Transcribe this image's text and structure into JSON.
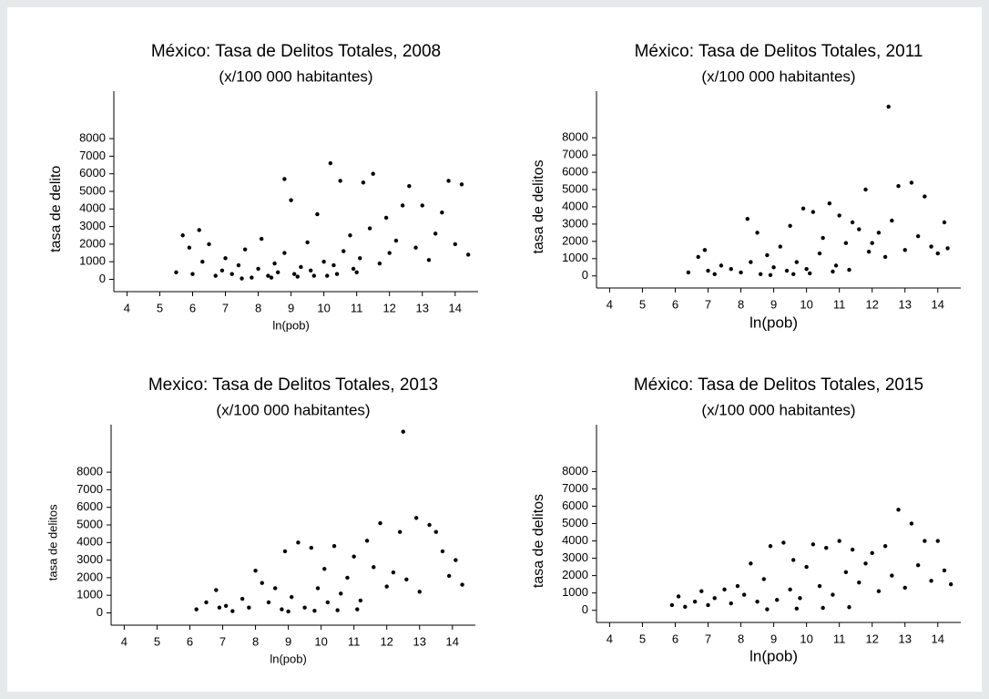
{
  "chart_data": [
    {
      "type": "scatter",
      "title": "México: Tasa de Delitos Totales, 2008",
      "subtitle": "(x/100 000 habitantes)",
      "x_label": "ln(pob)",
      "y_label": "tasa de delito",
      "color": "#000000",
      "xlim": [
        3.6,
        14.7
      ],
      "ylim": [
        -700,
        10700
      ],
      "xticks": [
        4,
        5,
        6,
        7,
        8,
        9,
        10,
        11,
        12,
        13,
        14
      ],
      "yticks": [
        0,
        1000,
        2000,
        3000,
        4000,
        5000,
        6000,
        7000,
        8000
      ],
      "x": [
        5.5,
        5.7,
        5.9,
        6.0,
        6.2,
        6.3,
        6.5,
        6.7,
        6.9,
        7.0,
        7.2,
        7.4,
        7.6,
        7.8,
        8.0,
        8.1,
        8.3,
        8.5,
        8.6,
        8.8,
        8.8,
        9.0,
        9.1,
        9.3,
        9.5,
        9.6,
        9.8,
        10.0,
        10.1,
        10.2,
        10.3,
        10.5,
        10.6,
        10.8,
        11.0,
        11.1,
        11.2,
        11.4,
        11.5,
        11.7,
        11.9,
        12.0,
        12.2,
        12.4,
        12.6,
        12.8,
        13.0,
        13.2,
        13.4,
        13.6,
        13.8,
        14.0,
        14.2,
        14.4,
        7.5,
        8.4,
        9.2,
        9.7,
        10.4,
        10.9
      ],
      "values": [
        400,
        2500,
        1800,
        300,
        2800,
        1000,
        2000,
        200,
        500,
        1200,
        300,
        800,
        1700,
        100,
        600,
        2300,
        200,
        900,
        400,
        5700,
        1500,
        4500,
        300,
        700,
        2100,
        500,
        3700,
        1000,
        200,
        6600,
        800,
        5600,
        1600,
        2500,
        400,
        1200,
        5500,
        2900,
        6000,
        900,
        3500,
        1500,
        2200,
        4200,
        5300,
        1800,
        4200,
        1100,
        2600,
        3800,
        5600,
        2000,
        5400,
        1400,
        50,
        100,
        150,
        200,
        300,
        600
      ]
    },
    {
      "type": "scatter",
      "title": "México: Tasa de Delitos Totales, 2011",
      "subtitle": "(x/100 000 habitantes)",
      "x_label": "ln(pob)",
      "y_label": "tasa de delitos",
      "color": "#000000",
      "xlim": [
        3.6,
        14.7
      ],
      "ylim": [
        -700,
        10700
      ],
      "xticks": [
        4,
        5,
        6,
        7,
        8,
        9,
        10,
        11,
        12,
        13,
        14
      ],
      "yticks": [
        0,
        1000,
        2000,
        3000,
        4000,
        5000,
        6000,
        7000,
        8000
      ],
      "x": [
        6.4,
        6.7,
        6.9,
        7.0,
        7.2,
        7.4,
        7.7,
        8.0,
        8.2,
        8.3,
        8.5,
        8.6,
        8.8,
        9.0,
        9.2,
        9.4,
        9.5,
        9.7,
        9.9,
        10.0,
        10.2,
        10.4,
        10.5,
        10.7,
        10.9,
        11.0,
        11.2,
        11.4,
        11.6,
        11.8,
        11.9,
        12.0,
        12.2,
        12.4,
        12.5,
        12.6,
        12.8,
        13.0,
        13.2,
        13.4,
        13.6,
        13.8,
        14.0,
        14.2,
        14.3,
        8.9,
        9.6,
        10.1,
        10.8,
        11.3
      ],
      "values": [
        200,
        1100,
        1500,
        300,
        100,
        600,
        400,
        200,
        3300,
        800,
        2500,
        100,
        1200,
        500,
        1700,
        300,
        2900,
        800,
        3900,
        400,
        3700,
        1300,
        2200,
        4200,
        600,
        3500,
        1900,
        3100,
        2700,
        5000,
        1400,
        1900,
        2500,
        1100,
        9800,
        3200,
        5200,
        1500,
        5400,
        2300,
        4600,
        1700,
        1300,
        3100,
        1600,
        50,
        100,
        150,
        250,
        350
      ]
    },
    {
      "type": "scatter",
      "title": "Mexico: Tasa de Delitos Totales, 2013",
      "subtitle": "(x/100 000 habitantes)",
      "x_label": "ln(pob)",
      "y_label": "tasa de delitos",
      "color": "#000000",
      "xlim": [
        3.6,
        14.7
      ],
      "ylim": [
        -700,
        10700
      ],
      "xticks": [
        4,
        5,
        6,
        7,
        8,
        9,
        10,
        11,
        12,
        13,
        14
      ],
      "yticks": [
        0,
        1000,
        2000,
        3000,
        4000,
        5000,
        6000,
        7000,
        8000
      ],
      "x": [
        6.2,
        6.5,
        6.8,
        6.9,
        7.1,
        7.3,
        7.6,
        7.8,
        8.0,
        8.2,
        8.4,
        8.6,
        8.8,
        8.9,
        9.1,
        9.3,
        9.5,
        9.7,
        9.9,
        10.1,
        10.2,
        10.4,
        10.6,
        10.8,
        11.0,
        11.2,
        11.4,
        11.6,
        11.8,
        12.0,
        12.2,
        12.4,
        12.5,
        12.6,
        12.9,
        13.0,
        13.3,
        13.5,
        13.7,
        13.9,
        14.1,
        14.3,
        9.0,
        9.8,
        10.5,
        11.1
      ],
      "values": [
        200,
        600,
        1300,
        300,
        400,
        100,
        800,
        300,
        2400,
        1700,
        600,
        1400,
        200,
        3500,
        900,
        4000,
        300,
        3700,
        1400,
        2500,
        600,
        3800,
        1100,
        2000,
        3200,
        700,
        4100,
        2600,
        5100,
        1500,
        2300,
        4600,
        10300,
        1900,
        5400,
        1200,
        5000,
        4600,
        3500,
        2100,
        3000,
        1600,
        80,
        120,
        150,
        200
      ]
    },
    {
      "type": "scatter",
      "title": "México: Tasa de Delitos Totales, 2015",
      "subtitle": "(x/100 000 habitantes)",
      "x_label": "ln(pob)",
      "y_label": "tasa de delitos",
      "color": "#000000",
      "xlim": [
        3.6,
        14.7
      ],
      "ylim": [
        -700,
        10700
      ],
      "xticks": [
        4,
        5,
        6,
        7,
        8,
        9,
        10,
        11,
        12,
        13,
        14
      ],
      "yticks": [
        0,
        1000,
        2000,
        3000,
        4000,
        5000,
        6000,
        7000,
        8000
      ],
      "x": [
        5.9,
        6.1,
        6.3,
        6.6,
        6.8,
        7.0,
        7.2,
        7.5,
        7.7,
        7.9,
        8.1,
        8.3,
        8.5,
        8.7,
        8.9,
        9.1,
        9.3,
        9.5,
        9.6,
        9.8,
        10.0,
        10.2,
        10.4,
        10.6,
        10.8,
        11.0,
        11.2,
        11.4,
        11.6,
        11.8,
        12.0,
        12.2,
        12.4,
        12.6,
        12.8,
        13.0,
        13.2,
        13.4,
        13.6,
        13.8,
        14.0,
        14.2,
        14.4,
        8.8,
        9.7,
        10.5,
        11.3
      ],
      "values": [
        300,
        800,
        200,
        500,
        1100,
        300,
        700,
        1200,
        400,
        1400,
        900,
        2700,
        500,
        1800,
        3700,
        600,
        3900,
        1200,
        2900,
        700,
        2500,
        3800,
        1400,
        3600,
        900,
        4000,
        2200,
        3500,
        1600,
        2700,
        3300,
        1100,
        3700,
        2000,
        5800,
        1300,
        5000,
        2600,
        4000,
        1700,
        4000,
        2300,
        1500,
        60,
        100,
        140,
        180
      ]
    }
  ]
}
